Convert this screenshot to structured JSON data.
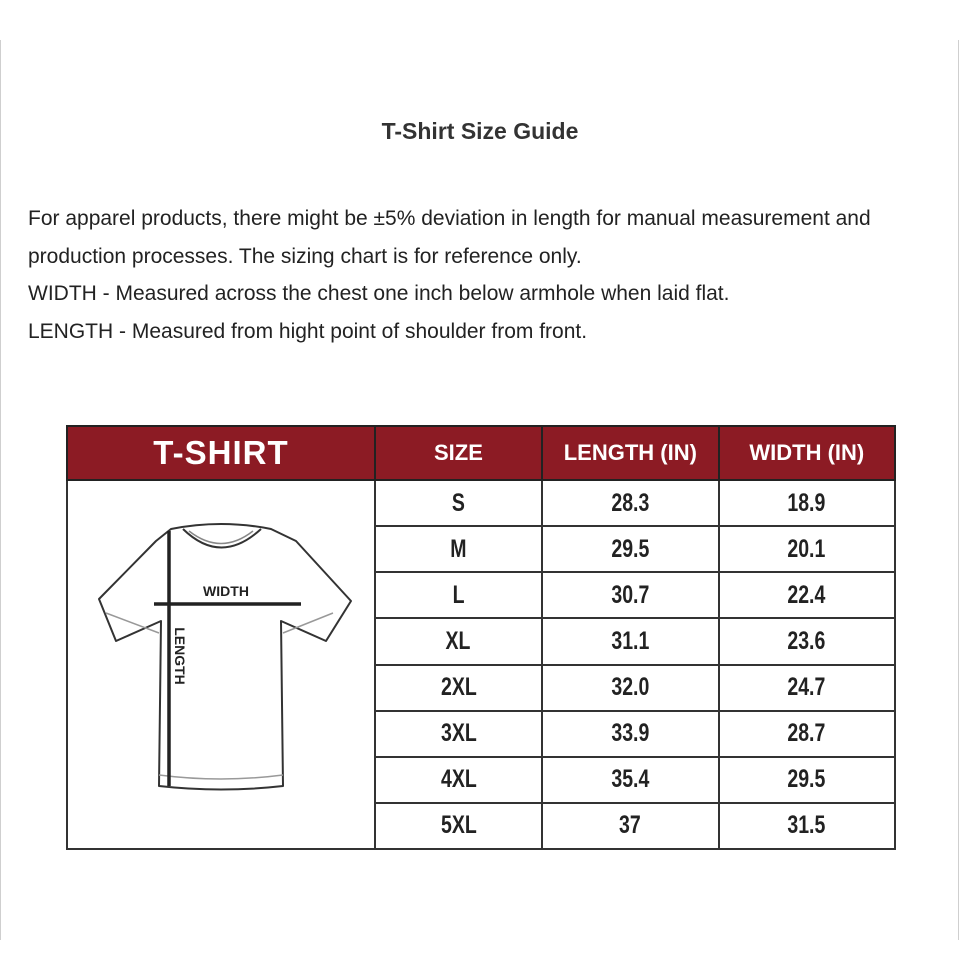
{
  "title": "T-Shirt Size Guide",
  "description": [
    "For apparel products, there might be ±5% deviation in length for manual measurement and production processes. The sizing chart is for reference only.",
    "WIDTH - Measured across the chest one inch below armhole when laid flat.",
    "LENGTH - Measured from hight point of shoulder from front."
  ],
  "table": {
    "headers": [
      "T-SHIRT",
      "SIZE",
      "LENGTH (IN)",
      "WIDTH (IN)"
    ],
    "header_color": "#8c1b24",
    "diagram": {
      "width_label": "WIDTH",
      "length_label": "LENGTH"
    },
    "rows": [
      {
        "size": "S",
        "length": "28.3",
        "width": "18.9"
      },
      {
        "size": "M",
        "length": "29.5",
        "width": "20.1"
      },
      {
        "size": "L",
        "length": "30.7",
        "width": "22.4"
      },
      {
        "size": "XL",
        "length": "31.1",
        "width": "23.6"
      },
      {
        "size": "2XL",
        "length": "32.0",
        "width": "24.7"
      },
      {
        "size": "3XL",
        "length": "33.9",
        "width": "28.7"
      },
      {
        "size": "4XL",
        "length": "35.4",
        "width": "29.5"
      },
      {
        "size": "5XL",
        "length": "37",
        "width": "31.5"
      }
    ]
  }
}
